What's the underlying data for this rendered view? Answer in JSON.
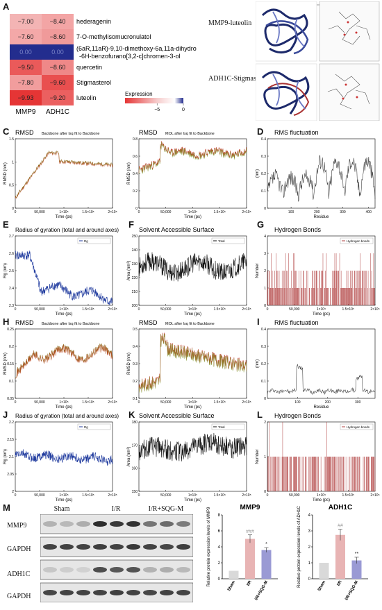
{
  "panels": {
    "A": "A",
    "B": "B",
    "C": "C",
    "D": "D",
    "E": "E",
    "F": "F",
    "G": "G",
    "H": "H",
    "I": "I",
    "J": "J",
    "K": "K",
    "L": "L",
    "M": "M"
  },
  "heatmap": {
    "columns": [
      "MMP9",
      "ADH1C"
    ],
    "rows": [
      {
        "label": "hederagenin",
        "values": [
          "−7.00",
          "−8.40"
        ],
        "colors": [
          "#f3b4b4",
          "#f3a5a5"
        ]
      },
      {
        "label": "7-O-methylisomucronulatol",
        "values": [
          "−7.60",
          "−8.60"
        ],
        "colors": [
          "#f4a8a8",
          "#f09a9a"
        ]
      },
      {
        "label": "(6aR,11aR)-9,10-dimethoxy-6a,11a-dihydro",
        "label2": "-6H-benzofurano[3,2-c]chromen-3-ol",
        "values": [
          "0.00",
          "0.00"
        ],
        "colors": [
          "#232d8e",
          "#232d8e"
        ]
      },
      {
        "label": "quercetin",
        "values": [
          "−9.50",
          "−8.60"
        ],
        "colors": [
          "#ea5a5a",
          "#ef8888"
        ]
      },
      {
        "label": "Stigmasterol",
        "values": [
          "−7.80",
          "−9.60"
        ],
        "colors": [
          "#f19d9d",
          "#e94f4f"
        ]
      },
      {
        "label": "luteolin",
        "values": [
          "−9.93",
          "−9.20"
        ],
        "colors": [
          "#e53535",
          "#eb6060"
        ]
      }
    ],
    "legend": {
      "title": "Expression",
      "ticks": [
        "−5",
        "0"
      ]
    }
  },
  "docking": {
    "labels": [
      "MMP9-luteolin",
      "ADH1C-Stigmasterol"
    ]
  },
  "md1": {
    "C": {
      "title": "RMSD",
      "subtitle": "Backbone after lsq fit to Backbone",
      "ylabel": "RMSD (nm)",
      "xlabel": "Time (ps)",
      "yticks": [
        "0",
        "0.5",
        "1",
        "1.5"
      ],
      "xticks": [
        "0",
        "50,000",
        "1×10⁵",
        "1.5×10⁵",
        "2×10⁵"
      ]
    },
    "C2": {
      "title": "RMSD",
      "subtitle": "MOL after lsq fit to Backbone",
      "ylabel": "RMSD (nm)",
      "xlabel": "Time (ps)",
      "yticks": [
        "0",
        "0.2",
        "0.4",
        "0.6",
        "0.8"
      ],
      "xticks": [
        "0",
        "50,000",
        "1×10⁵",
        "1.5×10⁵",
        "2×10⁵"
      ]
    },
    "D": {
      "title": "RMS fluctuation",
      "ylabel": "(nm)",
      "xlabel": "Residue",
      "yticks": [
        "0",
        "0.1",
        "0.2",
        "0.3",
        "0.4"
      ],
      "xticks": [
        "100",
        "200",
        "300",
        "400"
      ]
    },
    "E": {
      "title": "Radius of gyration (total and around axes)",
      "ylabel": "Rg (nm)",
      "xlabel": "Time (ps)",
      "legend": "Rg",
      "yticks": [
        "2.3",
        "2.4",
        "2.5",
        "2.6",
        "2.7"
      ],
      "xticks": [
        "0",
        "50,000",
        "1×10⁵",
        "1.5×10⁵",
        "2×10⁵"
      ]
    },
    "F": {
      "title": "Solvent Accessible Surface",
      "ylabel": "Area (nm²)",
      "xlabel": "Time (ps)",
      "legend": "Total",
      "yticks": [
        "200",
        "210",
        "220",
        "230",
        "240",
        "250"
      ],
      "xticks": [
        "0",
        "50,000",
        "1×10⁵",
        "1.5×10⁵",
        "2×10⁵"
      ]
    },
    "G": {
      "title": "Hydrogen Bonds",
      "ylabel": "Number",
      "xlabel": "Time (ps)",
      "legend": "Hydrogen bonds",
      "yticks": [
        "0",
        "1",
        "2",
        "3",
        "4"
      ],
      "xticks": [
        "0",
        "50,000",
        "1×10⁵",
        "1.5×10⁵",
        "2×10⁵"
      ]
    }
  },
  "md2": {
    "H": {
      "title": "RMSD",
      "subtitle": "Backbone after lsq fit to Backbone",
      "ylabel": "RMSD (nm)",
      "xlabel": "Time (ps)",
      "yticks": [
        "0.05",
        "0.1",
        "0.15",
        "0.2",
        "0.25"
      ],
      "xticks": [
        "0",
        "50,000",
        "1×10⁵",
        "1.5×10⁵",
        "2×10⁵"
      ]
    },
    "H2": {
      "title": "RMSD",
      "subtitle": "MOL after lsq fit to Backbone",
      "ylabel": "RMSD (nm)",
      "xlabel": "Time (ps)",
      "yticks": [
        "0.1",
        "0.2",
        "0.3",
        "0.4",
        "0.5"
      ],
      "xticks": [
        "0",
        "50,000",
        "1×10⁵",
        "1.5×10⁵",
        "2×10⁵"
      ]
    },
    "I": {
      "title": "RMS fluctuation",
      "ylabel": "(nm)",
      "xlabel": "Residue",
      "yticks": [
        "0",
        "0.1",
        "0.2",
        "0.3",
        "0.4"
      ],
      "xticks": [
        "100",
        "200",
        "300"
      ]
    },
    "J": {
      "title": "Radius of gyration (total and around axes)",
      "ylabel": "Rg (nm)",
      "xlabel": "Time (ps)",
      "legend": "Rg",
      "yticks": [
        "2",
        "2.05",
        "2.1",
        "2.15",
        "2.2"
      ],
      "xticks": [
        "0",
        "50,000",
        "1×10⁵",
        "1.5×10⁵",
        "2×10⁵"
      ]
    },
    "K": {
      "title": "Solvent Accessible Surface",
      "ylabel": "Area (nm²)",
      "xlabel": "Time (ps)",
      "legend": "Total",
      "yticks": [
        "150",
        "160",
        "170",
        "180"
      ],
      "xticks": [
        "0",
        "50,000",
        "1×10⁵",
        "1.5×10⁵",
        "2×10⁵"
      ]
    },
    "L": {
      "title": "Hydrogen Bonds",
      "ylabel": "Number",
      "xlabel": "Time (ps)",
      "legend": "Hydrogen bonds",
      "yticks": [
        "0",
        "1",
        "2"
      ],
      "xticks": [
        "0",
        "50,000",
        "1×10⁵",
        "1.5×10⁵",
        "2×10⁵"
      ]
    }
  },
  "western": {
    "groups": [
      "Sham",
      "I/R",
      "I/R+SQG-M"
    ],
    "rows": [
      "MMP9",
      "GAPDH",
      "ADH1C",
      "GAPDH"
    ]
  },
  "chart_data": [
    {
      "type": "bar",
      "title": "MMP9",
      "ylabel": "Relative protein expression levels of MMP9",
      "categories": [
        "Sham",
        "I/R",
        "I/R+SQG-M"
      ],
      "values": [
        1.0,
        5.0,
        3.6
      ],
      "errors": [
        0,
        0.5,
        0.3
      ],
      "significance": [
        "",
        "###",
        "*"
      ],
      "ylim": [
        0,
        8
      ],
      "yticks": [
        "0",
        "2",
        "4",
        "6",
        "8"
      ],
      "colors": [
        "#d9d9d9",
        "#e8b4b4",
        "#9a9ad4"
      ]
    },
    {
      "type": "bar",
      "title": "ADH1C",
      "ylabel": "Relative protein expression levels of ADH1C",
      "categories": [
        "Sham",
        "I/R",
        "I/R+SQG-M"
      ],
      "values": [
        1.0,
        2.75,
        1.15
      ],
      "errors": [
        0,
        0.35,
        0.2
      ],
      "significance": [
        "",
        "##",
        "**"
      ],
      "ylim": [
        0,
        4
      ],
      "yticks": [
        "0",
        "1",
        "2",
        "3",
        "4"
      ],
      "colors": [
        "#d9d9d9",
        "#e8b4b4",
        "#9a9ad4"
      ]
    }
  ]
}
